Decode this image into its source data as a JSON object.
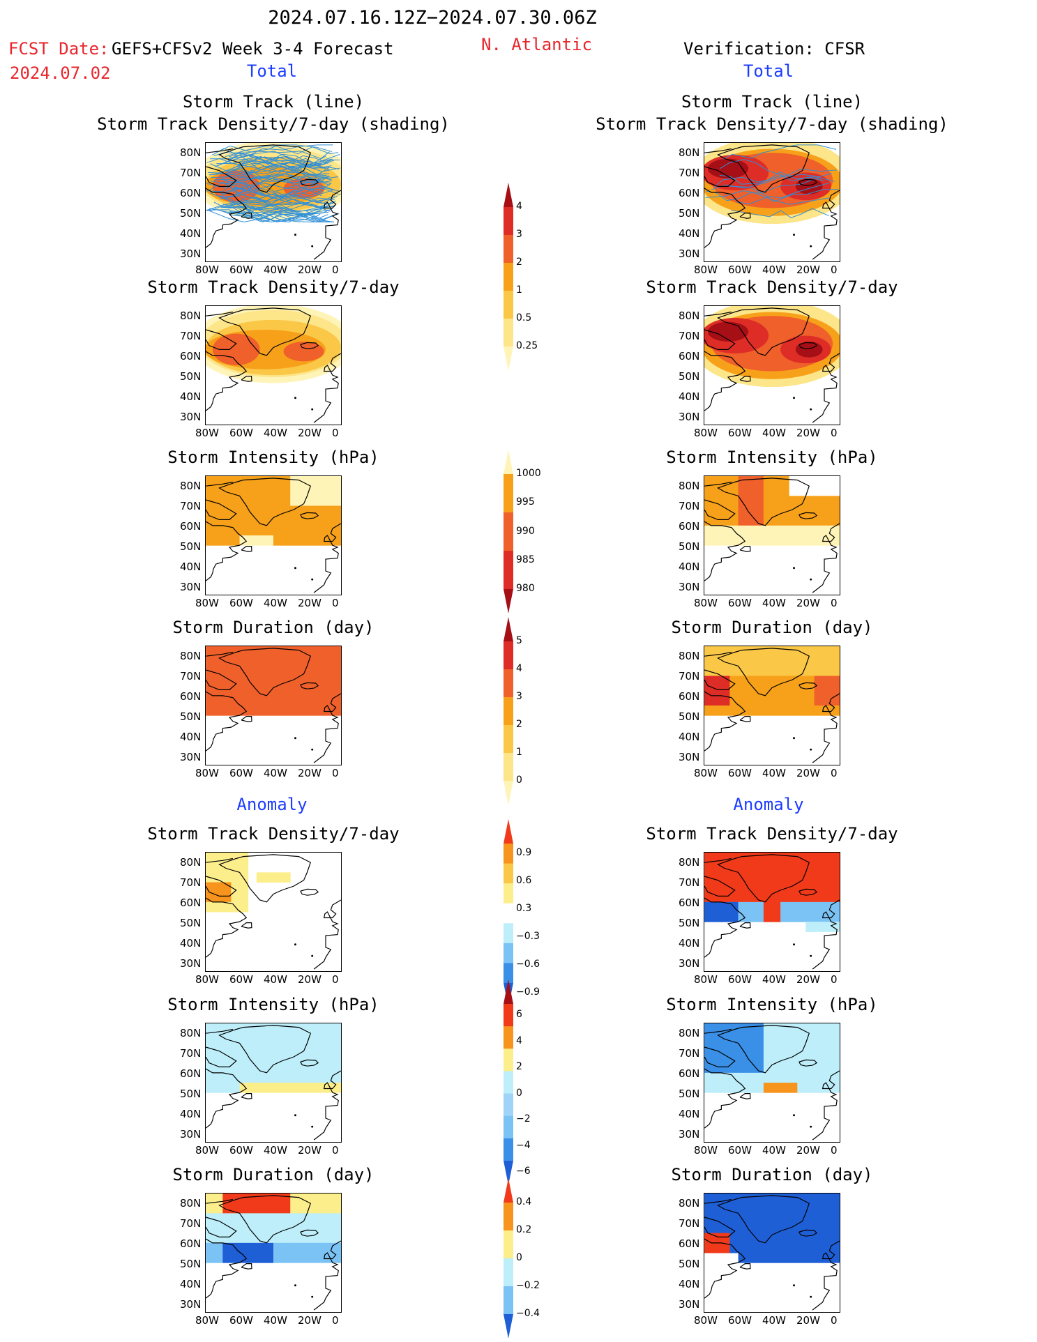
{
  "header": {
    "period": "2024.07.16.12Z−2024.07.30.06Z",
    "fcst_label": "FCST Date:",
    "fcst_date": "2024.07.02",
    "model": "GEFS+CFSv2 Week 3-4 Forecast",
    "region": "N. Atlantic",
    "verification": "Verification: CFSR"
  },
  "sections": {
    "total": "Total",
    "anomaly": "Anomaly"
  },
  "panel_titles": {
    "track_line": "Storm Track (line)",
    "track_density_shading": "Storm Track Density/7-day (shading)",
    "track_density": "Storm Track Density/7-day",
    "intensity": "Storm Intensity (hPa)",
    "duration": "Storm Duration (day)"
  },
  "axes": {
    "lat_labels": [
      "80N",
      "70N",
      "60N",
      "50N",
      "40N",
      "30N"
    ],
    "lon_labels": [
      "80W",
      "60W",
      "40W",
      "20W",
      "0"
    ]
  },
  "colorbars": {
    "density_total": {
      "labels": [
        "4",
        "3",
        "2",
        "1",
        "0.5",
        "0.25"
      ],
      "colors": [
        "#a50f15",
        "#de2d26",
        "#f0602a",
        "#f7a11a",
        "#fbc747",
        "#fde589",
        "#fff4b8"
      ]
    },
    "intensity_total": {
      "labels": [
        "1000",
        "995",
        "990",
        "985",
        "980"
      ],
      "colors": [
        "#fff4b8",
        "#f7a11a",
        "#f0602a",
        "#de2d26",
        "#a50f15"
      ]
    },
    "duration_total": {
      "labels": [
        "5",
        "4",
        "3",
        "2",
        "1",
        "0"
      ],
      "colors": [
        "#a50f15",
        "#de2d26",
        "#f0602a",
        "#f7a11a",
        "#fbc747",
        "#fde589",
        "#fff4b8"
      ]
    },
    "density_anom": {
      "labels": [
        "0.9",
        "0.6",
        "0.3",
        "−0.3",
        "−0.6",
        "−0.9"
      ],
      "colors": [
        "#f03a1a",
        "#f7941d",
        "#fbc747",
        "#fdee8c",
        "#ffffff",
        "#bdeefa",
        "#7cc3f5",
        "#3a8fe6",
        "#1f5fd6"
      ]
    },
    "intensity_anom": {
      "labels": [
        "6",
        "4",
        "2",
        "0",
        "−2",
        "−4",
        "−6"
      ],
      "colors": [
        "#a50f15",
        "#f03a1a",
        "#f7941d",
        "#fdee8c",
        "#bdeefa",
        "#9fd3f7",
        "#7cc3f5",
        "#3a8fe6",
        "#1f5fd6"
      ]
    },
    "duration_anom": {
      "labels": [
        "0.4",
        "0.2",
        "0",
        "−0.2",
        "−0.4"
      ],
      "colors": [
        "#f03a1a",
        "#f7941d",
        "#fdee8c",
        "#bdeefa",
        "#7cc3f5",
        "#1f5fd6"
      ]
    }
  }
}
